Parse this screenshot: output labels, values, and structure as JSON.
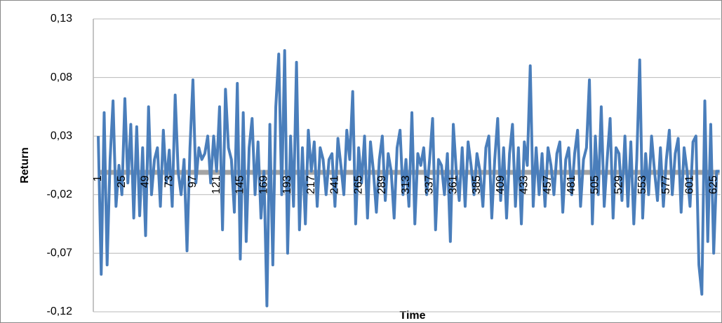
{
  "chart_data": {
    "type": "line",
    "y_label": "Return",
    "x_label": "Time",
    "ylim": [
      -0.12,
      0.13
    ],
    "yticks": [
      {
        "value": -0.12,
        "label": "-0,12"
      },
      {
        "value": -0.07,
        "label": "-0,07"
      },
      {
        "value": -0.02,
        "label": "-0,02"
      },
      {
        "value": 0.03,
        "label": "0,03"
      },
      {
        "value": 0.08,
        "label": "0,08"
      },
      {
        "value": 0.13,
        "label": "0,13"
      }
    ],
    "xlim": [
      -4,
      632
    ],
    "xticks": [
      1,
      25,
      49,
      73,
      97,
      121,
      145,
      169,
      193,
      217,
      241,
      265,
      289,
      313,
      337,
      361,
      385,
      409,
      433,
      457,
      481,
      505,
      529,
      553,
      577,
      601,
      625
    ],
    "grid": true,
    "series": [
      {
        "color": "#a5a5a5",
        "x": [
          1,
          631
        ],
        "values": [
          -0.001,
          -0.001
        ]
      },
      {
        "color": "#4a7ebb",
        "x": [
          1,
          4,
          7,
          10,
          13,
          16,
          19,
          22,
          25,
          28,
          31,
          34,
          37,
          40,
          43,
          46,
          49,
          52,
          55,
          58,
          61,
          64,
          67,
          70,
          73,
          76,
          79,
          82,
          85,
          88,
          91,
          94,
          97,
          100,
          103,
          106,
          109,
          112,
          115,
          118,
          121,
          124,
          127,
          130,
          133,
          136,
          139,
          142,
          145,
          148,
          151,
          154,
          157,
          160,
          163,
          166,
          169,
          172,
          175,
          178,
          181,
          184,
          187,
          190,
          193,
          196,
          199,
          202,
          205,
          208,
          211,
          214,
          217,
          220,
          223,
          226,
          229,
          232,
          235,
          238,
          241,
          244,
          247,
          250,
          253,
          256,
          259,
          262,
          265,
          268,
          271,
          274,
          277,
          280,
          283,
          286,
          289,
          292,
          295,
          298,
          301,
          304,
          307,
          310,
          313,
          316,
          319,
          322,
          325,
          328,
          331,
          334,
          337,
          340,
          343,
          346,
          349,
          352,
          355,
          358,
          361,
          364,
          367,
          370,
          373,
          376,
          379,
          382,
          385,
          388,
          391,
          394,
          397,
          400,
          403,
          406,
          409,
          412,
          415,
          418,
          421,
          424,
          427,
          430,
          433,
          436,
          439,
          442,
          445,
          448,
          451,
          454,
          457,
          460,
          463,
          466,
          469,
          472,
          475,
          478,
          481,
          484,
          487,
          490,
          493,
          496,
          499,
          502,
          505,
          508,
          511,
          514,
          517,
          520,
          523,
          526,
          529,
          532,
          535,
          538,
          541,
          544,
          547,
          550,
          553,
          556,
          559,
          562,
          565,
          568,
          571,
          574,
          577,
          580,
          583,
          586,
          589,
          592,
          595,
          598,
          601,
          604,
          607,
          610,
          613,
          616,
          619,
          622,
          625,
          628,
          631
        ],
        "values": [
          0.03,
          -0.088,
          0.05,
          -0.08,
          0.01,
          0.06,
          -0.03,
          0.005,
          -0.02,
          0.062,
          -0.01,
          0.04,
          -0.04,
          0.038,
          -0.038,
          0.02,
          -0.055,
          0.055,
          -0.02,
          0.01,
          0.02,
          -0.03,
          0.035,
          -0.01,
          0.018,
          -0.03,
          0.065,
          0.0,
          -0.02,
          0.01,
          -0.068,
          0.02,
          0.078,
          -0.01,
          0.02,
          0.01,
          0.015,
          0.03,
          -0.01,
          0.03,
          0.0,
          0.055,
          -0.05,
          0.07,
          0.02,
          0.01,
          -0.035,
          0.075,
          -0.075,
          0.05,
          -0.06,
          0.02,
          0.045,
          -0.02,
          0.025,
          -0.04,
          0.0,
          -0.115,
          0.04,
          -0.08,
          0.055,
          0.1,
          -0.02,
          0.103,
          -0.07,
          0.03,
          -0.03,
          0.093,
          -0.05,
          0.02,
          -0.045,
          0.035,
          0.0,
          0.025,
          -0.03,
          0.02,
          0.01,
          -0.02,
          0.01,
          0.015,
          -0.03,
          0.028,
          0.005,
          -0.02,
          0.035,
          0.01,
          0.068,
          -0.045,
          0.02,
          -0.01,
          0.03,
          -0.04,
          0.025,
          0.0,
          -0.035,
          0.01,
          0.03,
          -0.025,
          0.015,
          0.0,
          -0.04,
          0.02,
          0.035,
          -0.02,
          0.01,
          -0.03,
          0.05,
          -0.045,
          0.015,
          0.005,
          0.02,
          -0.02,
          0.01,
          0.045,
          -0.05,
          0.01,
          0.005,
          -0.02,
          0.015,
          -0.06,
          0.04,
          0.0,
          -0.025,
          0.02,
          -0.03,
          0.025,
          0.005,
          -0.02,
          0.015,
          0.0,
          -0.03,
          0.02,
          0.03,
          -0.04,
          0.01,
          0.045,
          -0.025,
          0.02,
          -0.04,
          0.015,
          0.04,
          -0.03,
          0.02,
          -0.045,
          0.025,
          0.005,
          0.09,
          -0.03,
          0.02,
          -0.02,
          0.015,
          -0.03,
          0.02,
          0.005,
          -0.02,
          0.015,
          0.025,
          -0.035,
          0.01,
          0.02,
          -0.02,
          0.015,
          0.035,
          -0.03,
          0.01,
          0.02,
          0.078,
          -0.045,
          0.03,
          -0.02,
          0.055,
          -0.03,
          0.01,
          0.045,
          -0.04,
          0.02,
          0.015,
          -0.025,
          0.03,
          -0.03,
          0.025,
          -0.045,
          0.01,
          0.095,
          -0.04,
          0.015,
          -0.02,
          0.03,
          0.0,
          -0.025,
          0.02,
          -0.03,
          0.01,
          0.035,
          -0.02,
          0.015,
          0.028,
          -0.035,
          0.02,
          0.0,
          -0.03,
          0.025,
          0.03,
          -0.08,
          -0.105,
          0.06,
          -0.06,
          0.04,
          -0.07,
          0.0,
          0.0
        ]
      }
    ]
  }
}
